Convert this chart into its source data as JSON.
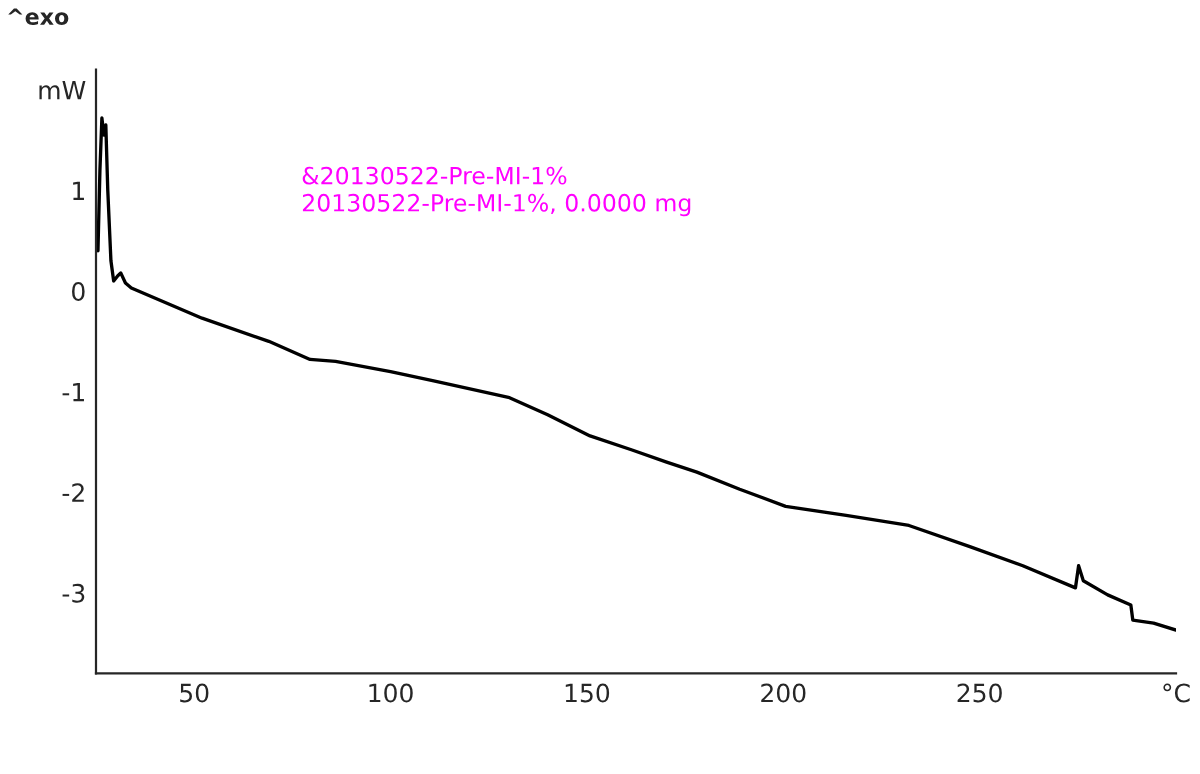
{
  "chart_data": {
    "type": "line",
    "title": "^exo",
    "annotations": [
      "&20130522-Pre-MI-1%",
      "20130522-Pre-MI-1%, 0.0000 mg"
    ],
    "series": [
      {
        "color": "#000000",
        "x": [
          25.5,
          26,
          26.5,
          27,
          27.5,
          28,
          28.8,
          29.5,
          30.5,
          31.3,
          32.5,
          34,
          52,
          69,
          79.5,
          86,
          100,
          110.7,
          130.3,
          140,
          150.8,
          161.5,
          170.3,
          178,
          188.9,
          200.6,
          216,
          232,
          247.5,
          261,
          274.4,
          275.2,
          276.4,
          282.6,
          288.5,
          289,
          294.3,
          300
        ],
        "values": [
          0.4,
          1.2,
          1.72,
          1.55,
          1.65,
          1.0,
          0.3,
          0.1,
          0.15,
          0.18,
          0.08,
          0.03,
          -0.27,
          -0.5,
          -0.68,
          -0.7,
          -0.8,
          -0.89,
          -1.06,
          -1.23,
          -1.44,
          -1.58,
          -1.7,
          -1.8,
          -1.97,
          -2.14,
          -2.23,
          -2.33,
          -2.54,
          -2.73,
          -2.95,
          -2.73,
          -2.88,
          -3.02,
          -3.12,
          -3.27,
          -3.3,
          -3.37
        ]
      }
    ],
    "xlim": [
      25,
      300
    ],
    "xticks": [
      50,
      100,
      150,
      200,
      250,
      {
        "value": 300,
        "label": "°C"
      }
    ],
    "ylim": [
      -3.8,
      2.2
    ],
    "yticks": [
      -3,
      -2,
      -1,
      0,
      1,
      {
        "value": 2,
        "label": "mW"
      }
    ],
    "grid": false,
    "legend": false,
    "marker": "none",
    "line_style": "solid"
  }
}
